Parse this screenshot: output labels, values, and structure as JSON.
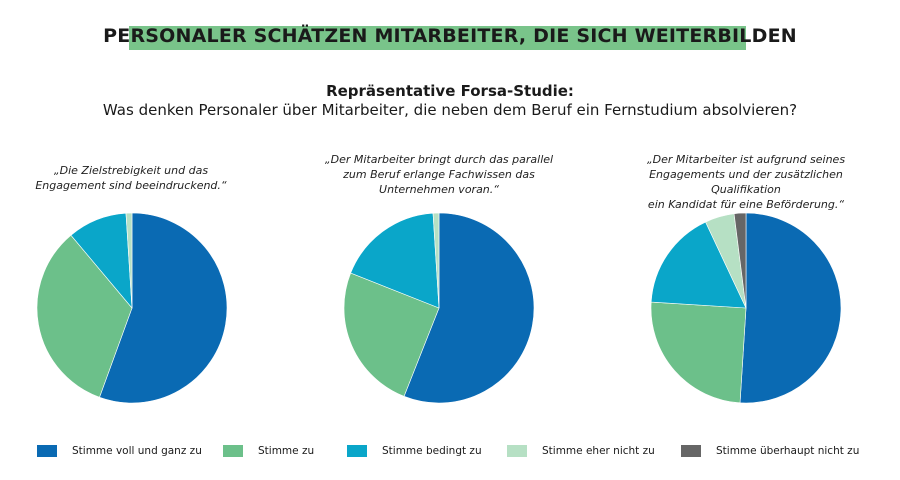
{
  "title": "PERSONALER SCHÄTZEN MITARBEITER, DIE SICH WEITERBILDEN",
  "subtitle_bold": "Repräsentative Forsa-Studie:",
  "subtitle": "Was denken Personaler über Mitarbeiter, die neben dem Beruf ein Fernstudium absolvieren?",
  "colors": {
    "title_bar": "#79c48a",
    "stimme_voll": "#0a6ab3",
    "stimme_zu": "#6cc08a",
    "stimme_bedingt": "#0aa6c9",
    "stimme_eher_nicht": "#b6e0c4",
    "stimme_ueberhaupt_nicht": "#666666"
  },
  "chart_data": [
    {
      "type": "pie",
      "title": "„Die Zielstrebigkeit und das\nEngagement sind beeindruckend.“",
      "categories": [
        "Stimme voll und ganz zu",
        "Stimme zu",
        "Stimme bedingt zu",
        "Stimme eher nicht zu",
        "Stimme überhaupt nicht zu"
      ],
      "values": [
        55,
        33,
        10,
        1,
        0
      ],
      "legend_position": "bottom"
    },
    {
      "type": "pie",
      "title": "„Der Mitarbeiter bringt durch das parallel\nzum Beruf erlange Fachwissen das\nUnternehmen voran.“",
      "categories": [
        "Stimme voll und ganz zu",
        "Stimme zu",
        "Stimme bedingt zu",
        "Stimme eher nicht zu",
        "Stimme überhaupt nicht zu"
      ],
      "values": [
        56,
        25,
        18,
        1,
        0
      ],
      "legend_position": "bottom"
    },
    {
      "type": "pie",
      "title": "„Der Mitarbeiter ist aufgrund seines\nEngagements und der zusätzlichen Qualifikation\nein Kandidat für eine Beförderung.“",
      "categories": [
        "Stimme voll und ganz zu",
        "Stimme zu",
        "Stimme bedingt zu",
        "Stimme eher nicht zu",
        "Stimme überhaupt nicht zu"
      ],
      "values": [
        51,
        25,
        17,
        5,
        2
      ],
      "legend_position": "bottom"
    }
  ],
  "legend": [
    {
      "label": "Stimme voll und ganz zu",
      "color": "#0a6ab3"
    },
    {
      "label": "Stimme zu",
      "color": "#6cc08a"
    },
    {
      "label": "Stimme bedingt zu",
      "color": "#0aa6c9"
    },
    {
      "label": "Stimme eher nicht zu",
      "color": "#b6e0c4"
    },
    {
      "label": "Stimme überhaupt nicht zu",
      "color": "#666666"
    }
  ]
}
